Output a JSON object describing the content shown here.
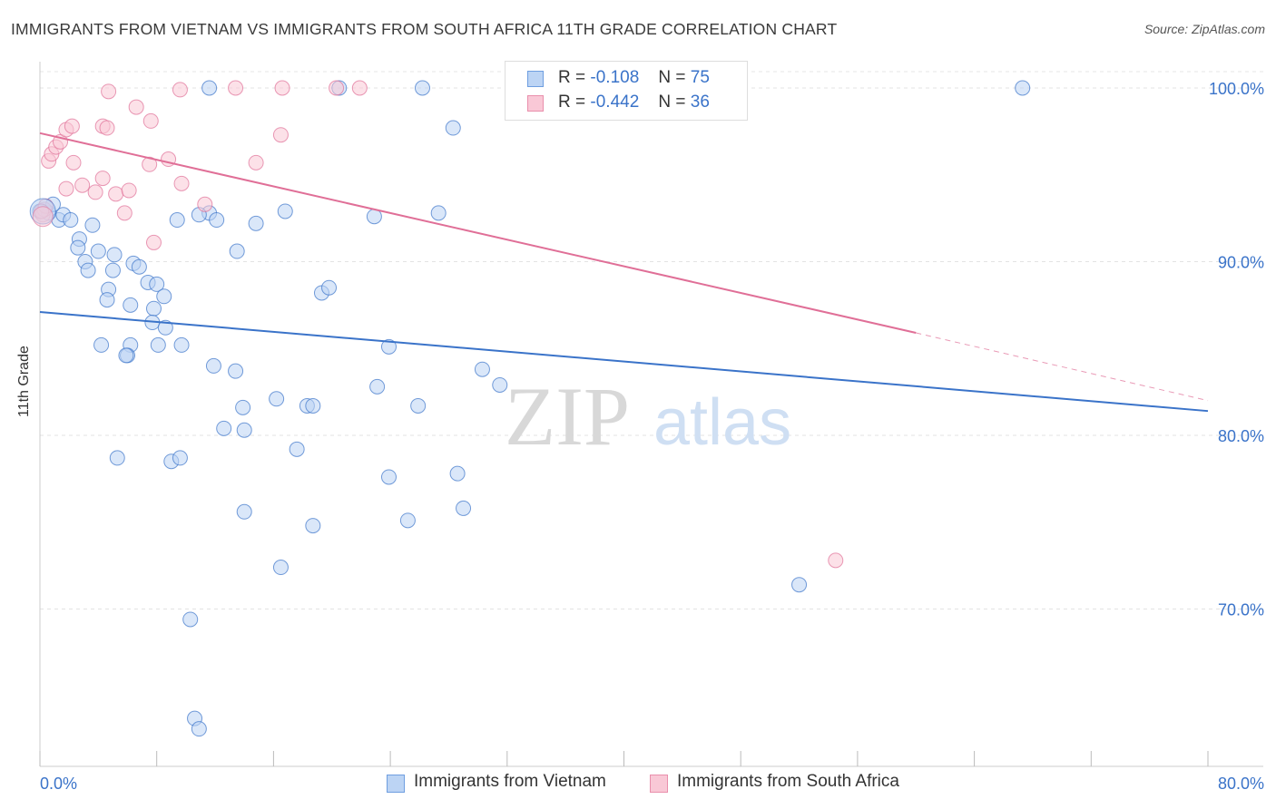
{
  "title": "IMMIGRANTS FROM VIETNAM VS IMMIGRANTS FROM SOUTH AFRICA 11TH GRADE CORRELATION CHART",
  "source": "Source: ZipAtlas.com",
  "watermark": {
    "zip": "ZIP",
    "atlas": "atlas"
  },
  "legend": {
    "r_label": "R =",
    "n_label": "N =",
    "series": [
      {
        "name": "Immigrants from Vietnam",
        "r": "-0.108",
        "n": "75",
        "color": "#3a73c9"
      },
      {
        "name": "Immigrants from South Africa",
        "r": "-0.442",
        "n": "36",
        "color": "#e06f97"
      }
    ]
  },
  "chart_data": {
    "type": "scatter",
    "xlabel": "",
    "ylabel": "11th Grade",
    "xlim": [
      0,
      80
    ],
    "ylim": [
      60,
      100
    ],
    "x_tick_labels": [
      "0.0%",
      "80.0%"
    ],
    "y_ticks": [
      100,
      90,
      80,
      70
    ],
    "y_tick_labels": [
      "100.0%",
      "90.0%",
      "80.0%",
      "70.0%"
    ],
    "grid": true,
    "series": [
      {
        "name": "Immigrants from Vietnam",
        "color": "#3a73c9",
        "fill": "#bcd4f4",
        "trend": {
          "x": [
            0,
            80
          ],
          "y": [
            87.1,
            81.4
          ]
        },
        "points": [
          [
            0.0,
            92.9
          ],
          [
            0.6,
            92.8
          ],
          [
            0.9,
            93.3
          ],
          [
            1.3,
            92.4
          ],
          [
            1.6,
            92.7
          ],
          [
            2.1,
            92.4
          ],
          [
            2.7,
            91.3
          ],
          [
            2.6,
            90.8
          ],
          [
            3.1,
            90.0
          ],
          [
            3.3,
            89.5
          ],
          [
            3.6,
            92.1
          ],
          [
            4.0,
            90.6
          ],
          [
            4.7,
            88.4
          ],
          [
            4.6,
            87.8
          ],
          [
            5.1,
            90.4
          ],
          [
            5.0,
            89.5
          ],
          [
            6.4,
            89.9
          ],
          [
            6.2,
            87.5
          ],
          [
            6.8,
            89.7
          ],
          [
            7.4,
            88.8
          ],
          [
            8.0,
            88.7
          ],
          [
            7.8,
            87.3
          ],
          [
            8.5,
            88.0
          ],
          [
            7.7,
            86.5
          ],
          [
            8.6,
            86.2
          ],
          [
            4.2,
            85.2
          ],
          [
            6.2,
            85.2
          ],
          [
            8.1,
            85.2
          ],
          [
            9.7,
            85.2
          ],
          [
            6.0,
            84.6
          ],
          [
            5.9,
            84.6
          ],
          [
            11.9,
            84.0
          ],
          [
            13.4,
            83.7
          ],
          [
            11.6,
            92.8
          ],
          [
            12.1,
            92.4
          ],
          [
            9.4,
            92.4
          ],
          [
            14.8,
            92.2
          ],
          [
            13.5,
            90.6
          ],
          [
            19.3,
            88.2
          ],
          [
            19.8,
            88.5
          ],
          [
            13.9,
            81.6
          ],
          [
            16.2,
            82.1
          ],
          [
            18.3,
            81.7
          ],
          [
            18.7,
            81.7
          ],
          [
            12.6,
            80.4
          ],
          [
            14.0,
            80.3
          ],
          [
            23.1,
            82.8
          ],
          [
            23.9,
            85.1
          ],
          [
            25.9,
            81.7
          ],
          [
            30.3,
            83.8
          ],
          [
            31.5,
            82.9
          ],
          [
            17.6,
            79.2
          ],
          [
            5.3,
            78.7
          ],
          [
            9.0,
            78.5
          ],
          [
            9.6,
            78.7
          ],
          [
            23.9,
            77.6
          ],
          [
            28.6,
            77.8
          ],
          [
            14.0,
            75.6
          ],
          [
            18.7,
            74.8
          ],
          [
            25.2,
            75.1
          ],
          [
            29.0,
            75.8
          ],
          [
            16.5,
            72.4
          ],
          [
            52.0,
            71.4
          ],
          [
            10.3,
            69.4
          ],
          [
            10.6,
            63.7
          ],
          [
            10.9,
            63.1
          ],
          [
            11.6,
            100.0
          ],
          [
            26.2,
            100.0
          ],
          [
            20.5,
            100.0
          ],
          [
            28.3,
            97.7
          ],
          [
            67.3,
            100.0
          ],
          [
            10.9,
            92.7
          ],
          [
            16.8,
            92.9
          ],
          [
            22.9,
            92.6
          ],
          [
            27.3,
            92.8
          ]
        ]
      },
      {
        "name": "Immigrants from South Africa",
        "color": "#e06f97",
        "fill": "#f9c8d6",
        "trend": {
          "x": [
            0,
            60
          ],
          "y": [
            97.4,
            85.9
          ]
        },
        "trend_dashed": {
          "x": [
            60,
            80
          ],
          "y": [
            85.9,
            82.0
          ]
        },
        "points": [
          [
            0.2,
            92.7
          ],
          [
            0.3,
            93.0
          ],
          [
            0.4,
            93.2
          ],
          [
            0.6,
            95.8
          ],
          [
            0.8,
            96.2
          ],
          [
            1.1,
            96.6
          ],
          [
            1.4,
            96.9
          ],
          [
            1.8,
            97.6
          ],
          [
            2.2,
            97.8
          ],
          [
            2.3,
            95.7
          ],
          [
            1.8,
            94.2
          ],
          [
            2.9,
            94.4
          ],
          [
            3.8,
            94.0
          ],
          [
            4.3,
            97.8
          ],
          [
            4.6,
            97.7
          ],
          [
            5.2,
            93.9
          ],
          [
            4.3,
            94.8
          ],
          [
            4.7,
            99.8
          ],
          [
            6.1,
            94.1
          ],
          [
            5.8,
            92.8
          ],
          [
            6.6,
            98.9
          ],
          [
            7.6,
            98.1
          ],
          [
            7.5,
            95.6
          ],
          [
            8.8,
            95.9
          ],
          [
            9.6,
            99.9
          ],
          [
            9.7,
            94.5
          ],
          [
            11.3,
            93.3
          ],
          [
            7.8,
            91.1
          ],
          [
            13.4,
            100.0
          ],
          [
            16.6,
            100.0
          ],
          [
            14.8,
            95.7
          ],
          [
            16.5,
            97.3
          ],
          [
            20.3,
            100.0
          ],
          [
            21.9,
            100.0
          ],
          [
            54.5,
            72.8
          ],
          [
            0.1,
            92.9
          ]
        ]
      }
    ]
  }
}
